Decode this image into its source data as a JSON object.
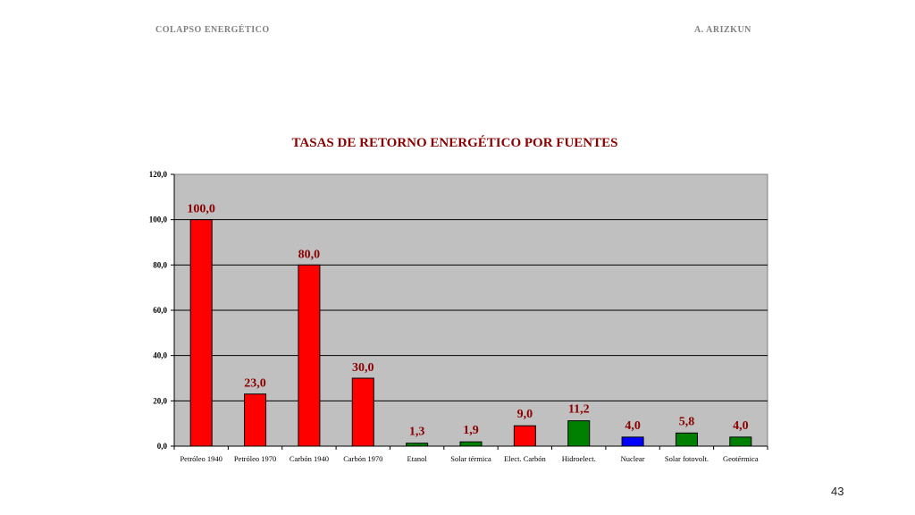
{
  "header": {
    "left": "COLAPSO ENERGÉTICO",
    "right": "A. ARIZKUN"
  },
  "page_number": "43",
  "colors": {
    "plot_background": "#c0c0c0",
    "gridline": "#000000",
    "label_text": "#8b0000",
    "red_bar": "#ff0000",
    "green_bar": "#008000",
    "blue_bar": "#0000ff"
  },
  "chart_data": {
    "type": "bar",
    "title": "TASAS DE RETORNO ENERGÉTICO POR FUENTES",
    "xlabel": "",
    "ylabel": "",
    "ylim": [
      0,
      120
    ],
    "yticks": [
      "0,0",
      "20,0",
      "40,0",
      "60,0",
      "80,0",
      "100,0",
      "120,0"
    ],
    "ytick_values": [
      0,
      20,
      40,
      60,
      80,
      100,
      120
    ],
    "grid": true,
    "legend": "none",
    "categories": [
      "Petróleo 1940",
      "Petróleo 1970",
      "Carbón 1940",
      "Carbón 1970",
      "Etanol",
      "Solar térmica",
      "Elect. Carbón",
      "Hidroelect.",
      "Nuclear",
      "Solar fotovolt.",
      "Geotérmica"
    ],
    "values": [
      100.0,
      23.0,
      80.0,
      30.0,
      1.3,
      1.9,
      9.0,
      11.2,
      4.0,
      5.8,
      4.0
    ],
    "value_labels": [
      "100,0",
      "23,0",
      "80,0",
      "30,0",
      "1,3",
      "1,9",
      "9,0",
      "11,2",
      "4,0",
      "5,8",
      "4,0"
    ],
    "bar_colors": [
      "#ff0000",
      "#ff0000",
      "#ff0000",
      "#ff0000",
      "#008000",
      "#008000",
      "#ff0000",
      "#008000",
      "#0000ff",
      "#008000",
      "#008000"
    ]
  }
}
